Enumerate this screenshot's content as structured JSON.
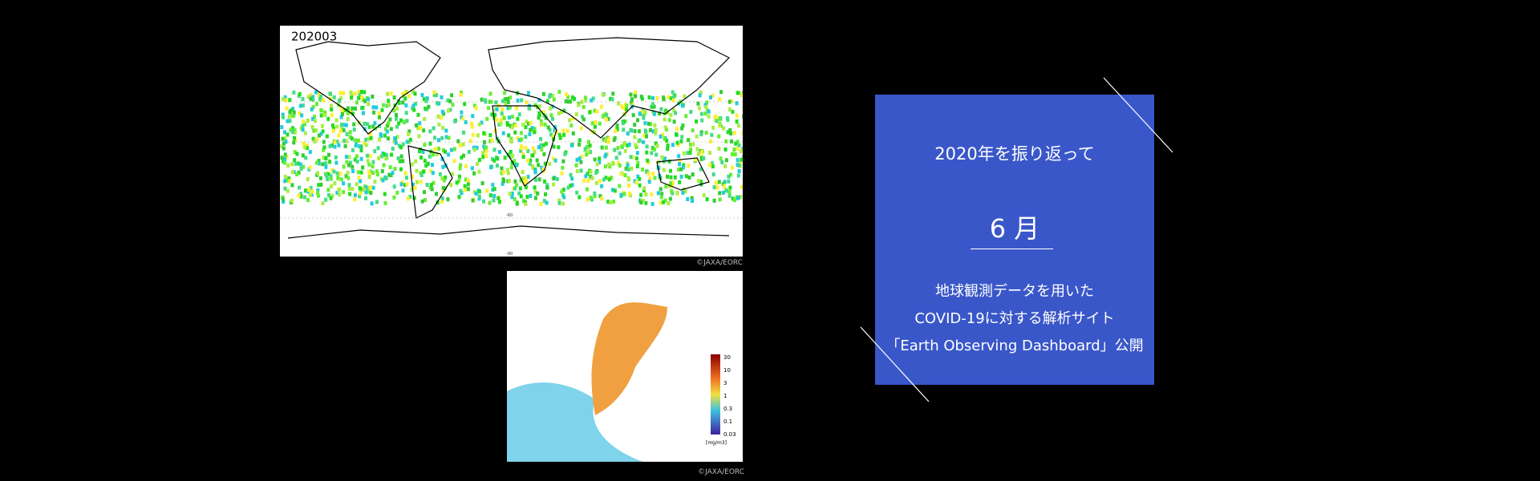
{
  "slide": {
    "map_image": {
      "label": "202003",
      "lat_labels": [
        "-60",
        "-90"
      ],
      "credit": "©JAXA/EORC"
    },
    "chlorophyll_image": {
      "colorbar_ticks": [
        "30",
        "10",
        "3",
        "1",
        "0.3",
        "0.1",
        "0.03"
      ],
      "unit": "[mg/m3]",
      "credit": "©JAXA/EORC"
    },
    "panel": {
      "heading": "2020年を振り返って",
      "month": "6 月",
      "lines": [
        "地球観測データを用いた",
        "COVID-19に対する解析サイト",
        "「Earth Observing Dashboard」公開"
      ]
    }
  }
}
